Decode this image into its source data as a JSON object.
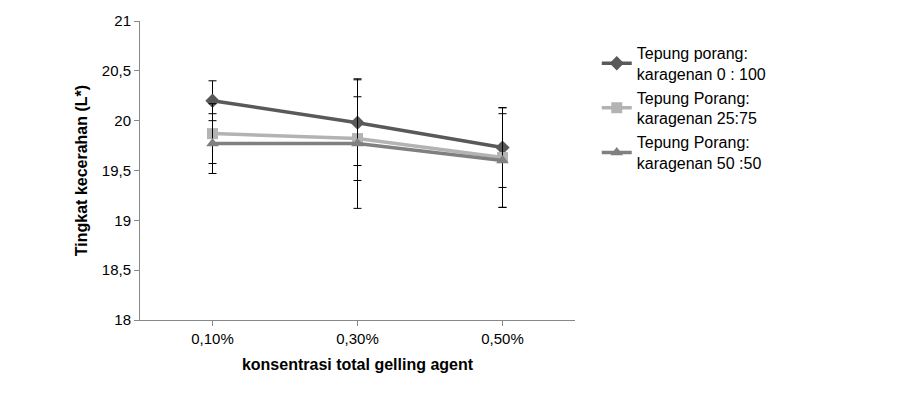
{
  "chart_data": {
    "type": "line",
    "x_label": "konsentrasi total gelling agent",
    "y_label": "Tingkat kecerahan (L*)",
    "categories": [
      "0,10%",
      "0,30%",
      "0,50%"
    ],
    "ylim": [
      18,
      21
    ],
    "yticks": [
      18,
      {
        "value": 18.5,
        "label": "18,5"
      },
      19,
      {
        "value": 19.5,
        "label": "19,5"
      },
      20,
      {
        "value": 20.5,
        "label": "20,5"
      },
      21
    ],
    "grid": false,
    "legend": "right",
    "series": [
      {
        "name": "Tepung porang: karagenan 0 : 100",
        "color": "#595959",
        "marker": "diamond",
        "values": [
          20.2,
          19.98,
          19.73
        ],
        "error": [
          0.2,
          0.43,
          0.4
        ]
      },
      {
        "name": "Tepung Porang: karagenan 25:75",
        "color": "#b3b3b3",
        "marker": "square",
        "values": [
          19.87,
          19.82,
          19.63
        ],
        "error": [
          0.3,
          0.42,
          0.5
        ]
      },
      {
        "name": "Tepung Porang: karagenan 50 :50",
        "color": "#808080",
        "marker": "triangle-up",
        "values": [
          19.77,
          19.77,
          19.6
        ],
        "error": [
          0.3,
          0.65,
          0.47
        ]
      }
    ]
  }
}
